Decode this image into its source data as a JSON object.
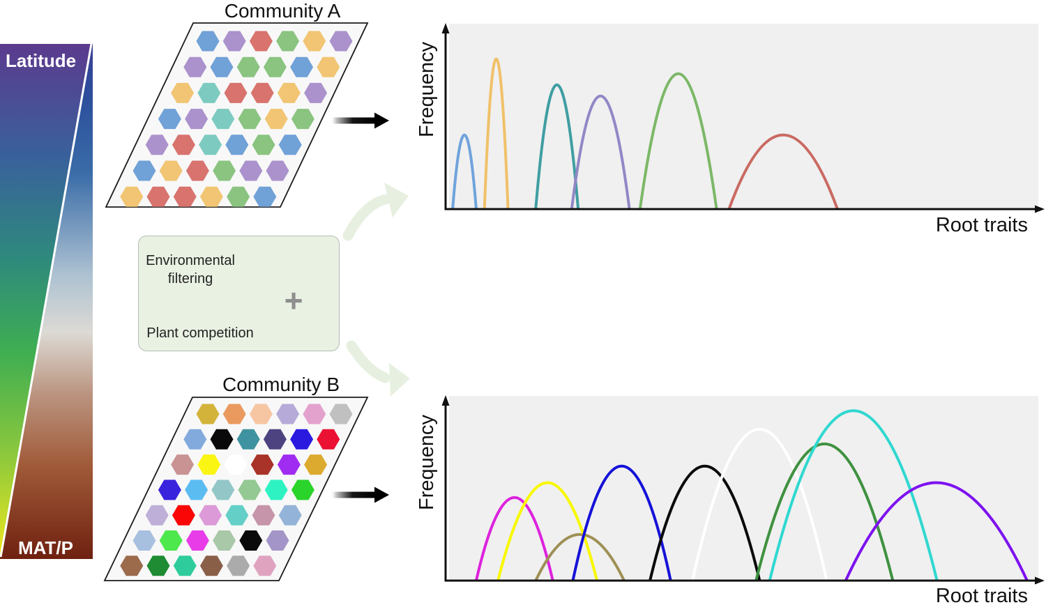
{
  "gradient_bar": {
    "top_label": "Latitude",
    "bottom_label": "MAT/P",
    "latitude_gradient_stops": [
      {
        "o": 0.0,
        "c": "#5C3A8E"
      },
      {
        "o": 0.22,
        "c": "#39619C"
      },
      {
        "o": 0.42,
        "c": "#2E8A7C"
      },
      {
        "o": 0.6,
        "c": "#3FAE52"
      },
      {
        "o": 0.8,
        "c": "#8CC83C"
      },
      {
        "o": 1.0,
        "c": "#EEE81F"
      }
    ],
    "matp_gradient_stops": [
      {
        "o": 0.0,
        "c": "#3C3E96"
      },
      {
        "o": 0.1,
        "c": "#2C4E9C"
      },
      {
        "o": 0.25,
        "c": "#3A6CA8"
      },
      {
        "o": 0.45,
        "c": "#AEC2D2"
      },
      {
        "o": 0.56,
        "c": "#DCDAD4"
      },
      {
        "o": 0.68,
        "c": "#BB9480"
      },
      {
        "o": 0.82,
        "c": "#A05A38"
      },
      {
        "o": 1.0,
        "c": "#6F2110"
      }
    ],
    "divider_color": "#FFFFFF"
  },
  "communities": {
    "panel_fill": "#F8F8F8",
    "panel_border": "#1A1A1A",
    "a": {
      "title": "Community A",
      "rows": [
        [
          "#70A1D7",
          "#AB92CC",
          "#D8736E",
          "#8AC480",
          "#F1C573",
          "#AB92CC"
        ],
        [
          "#AB92CC",
          "#70A1D7",
          "#8AC480",
          "#8AC480",
          "#70A1D7",
          "#F1C573"
        ],
        [
          "#F1C573",
          "#7DCBC0",
          "#D8736E",
          "#D8736E",
          "#F1C573",
          "#AB92CC"
        ],
        [
          "#70A1D7",
          "#AB92CC",
          "#7DCBC0",
          "#8AC480",
          "#F1C573",
          "#8AC480"
        ],
        [
          "#AB92CC",
          "#D8736E",
          "#7DCBC0",
          "#70A1D7",
          "#8AC480",
          "#70A1D7"
        ],
        [
          "#70A1D7",
          "#F1C573",
          "#D8736E",
          "#8AC480",
          "#AB92CC",
          "#AB92CC"
        ],
        [
          "#F1C573",
          "#D8736E",
          "#D8736E",
          "#F1C573",
          "#8AC480",
          "#70A1D7"
        ]
      ]
    },
    "b": {
      "title": "Community B",
      "rows": [
        [
          "#D4B33A",
          "#EB9A5F",
          "#F6C6A2",
          "#B6ABD8",
          "#E3A2CD",
          "#C0C0C0"
        ],
        [
          "#82AADC",
          "#0A0A0A",
          "#3F93A0",
          "#4C4380",
          "#2A1AE0",
          "#EA1133"
        ],
        [
          "#C99393",
          "#FBF513",
          "#FFFFFF",
          "#A93328",
          "#A02CF2",
          "#DCAA2E"
        ],
        [
          "#3A23DD",
          "#5BBCF2",
          "#93C7C7",
          "#94C994",
          "#2EF2C2",
          "#2AD42A"
        ],
        [
          "#BEAFD8",
          "#FB0607",
          "#DC9AD8",
          "#64CFC6",
          "#C795A9",
          "#94B3D8"
        ],
        [
          "#A8C0E0",
          "#4CE84C",
          "#E83CE8",
          "#A8C8A8",
          "#0A0A0A",
          "#A495C8"
        ],
        [
          "#9C6B4C",
          "#1F8C33",
          "#2ECC9C",
          "#8A5F48",
          "#ABABAB",
          "#DFA3C0"
        ]
      ]
    }
  },
  "process_box": {
    "line1": "Environmental filtering",
    "line2": "Plant competition",
    "plus": "+",
    "filter_icon": "dots-through-sieve-icon",
    "puzzle_icon": "jigsaw-puzzle-icon",
    "filter_dots_left": [
      [
        "b",
        "b",
        "b",
        "s",
        "b",
        "s"
      ],
      [
        "s",
        "b",
        "b",
        "s",
        "b",
        "s"
      ]
    ],
    "filter_dots_right": [
      [
        "x",
        "b",
        "b",
        "s",
        "x",
        "s"
      ],
      [
        "s",
        "b",
        "x",
        "s",
        "b",
        "s"
      ]
    ],
    "dot_color": "#111111",
    "x_mark_color": "#C32222",
    "x_circle_fill": "#F4D6D6",
    "sieve_color": "#98A4B6",
    "puzzle_colors": [
      "#4472C4",
      "#E8A33D",
      "#111111",
      "#69A84F"
    ]
  },
  "arrows": {
    "solid_arrow_color": "#000000",
    "curved_arrow_color": "#E7F0E0"
  },
  "chart_data": [
    {
      "type": "line",
      "id": "community-a-root-trait-distribution",
      "xlabel": "Root traits",
      "ylabel": "Frequency",
      "xlim": [
        0,
        100
      ],
      "ylim": [
        0,
        1
      ],
      "grid": false,
      "plot_bg": "#F0F0F0",
      "axis_color": "#111111",
      "series": [
        {
          "name": "species-blue",
          "color": "#6FA3DC",
          "center": 2.6,
          "half_width": 2.0,
          "peak": 0.4
        },
        {
          "name": "species-orange",
          "color": "#F0C169",
          "center": 8.0,
          "half_width": 2.0,
          "peak": 0.81
        },
        {
          "name": "species-teal",
          "color": "#3F9EA2",
          "center": 18.3,
          "half_width": 3.6,
          "peak": 0.67
        },
        {
          "name": "species-purple",
          "color": "#9287C6",
          "center": 25.7,
          "half_width": 4.9,
          "peak": 0.61
        },
        {
          "name": "species-green",
          "color": "#7CB868",
          "center": 38.9,
          "half_width": 6.5,
          "peak": 0.73
        },
        {
          "name": "species-red",
          "color": "#CA6A62",
          "center": 56.7,
          "half_width": 9.2,
          "peak": 0.4
        }
      ]
    },
    {
      "type": "line",
      "id": "community-b-root-trait-distribution",
      "xlabel": "Root traits",
      "ylabel": "Frequency",
      "xlim": [
        0,
        100
      ],
      "ylim": [
        0,
        1
      ],
      "grid": false,
      "plot_bg": "#F0F0F0",
      "axis_color": "#111111",
      "series": [
        {
          "name": "species-magenta",
          "color": "#DD22DD",
          "center": 11.1,
          "half_width": 6.5,
          "peak": 0.45
        },
        {
          "name": "species-khaki",
          "color": "#9E9055",
          "center": 22.2,
          "half_width": 7.5,
          "peak": 0.25
        },
        {
          "name": "species-yellow",
          "color": "#F8F800",
          "center": 16.7,
          "half_width": 8.4,
          "peak": 0.53
        },
        {
          "name": "species-blue",
          "color": "#1512D8",
          "center": 29.3,
          "half_width": 8.3,
          "peak": 0.62
        },
        {
          "name": "species-black",
          "color": "#0A0A0A",
          "center": 43.4,
          "half_width": 9.3,
          "peak": 0.62
        },
        {
          "name": "species-white",
          "color": "#FFFFFF",
          "center": 52.7,
          "half_width": 11.4,
          "peak": 0.82
        },
        {
          "name": "species-green",
          "color": "#3F9140",
          "center": 63.7,
          "half_width": 11.6,
          "peak": 0.74
        },
        {
          "name": "species-cyan",
          "color": "#2FD8D0",
          "center": 68.6,
          "half_width": 14.2,
          "peak": 0.92
        },
        {
          "name": "species-violet",
          "color": "#7D12F0",
          "center": 82.7,
          "half_width": 15.4,
          "peak": 0.53
        }
      ]
    }
  ]
}
